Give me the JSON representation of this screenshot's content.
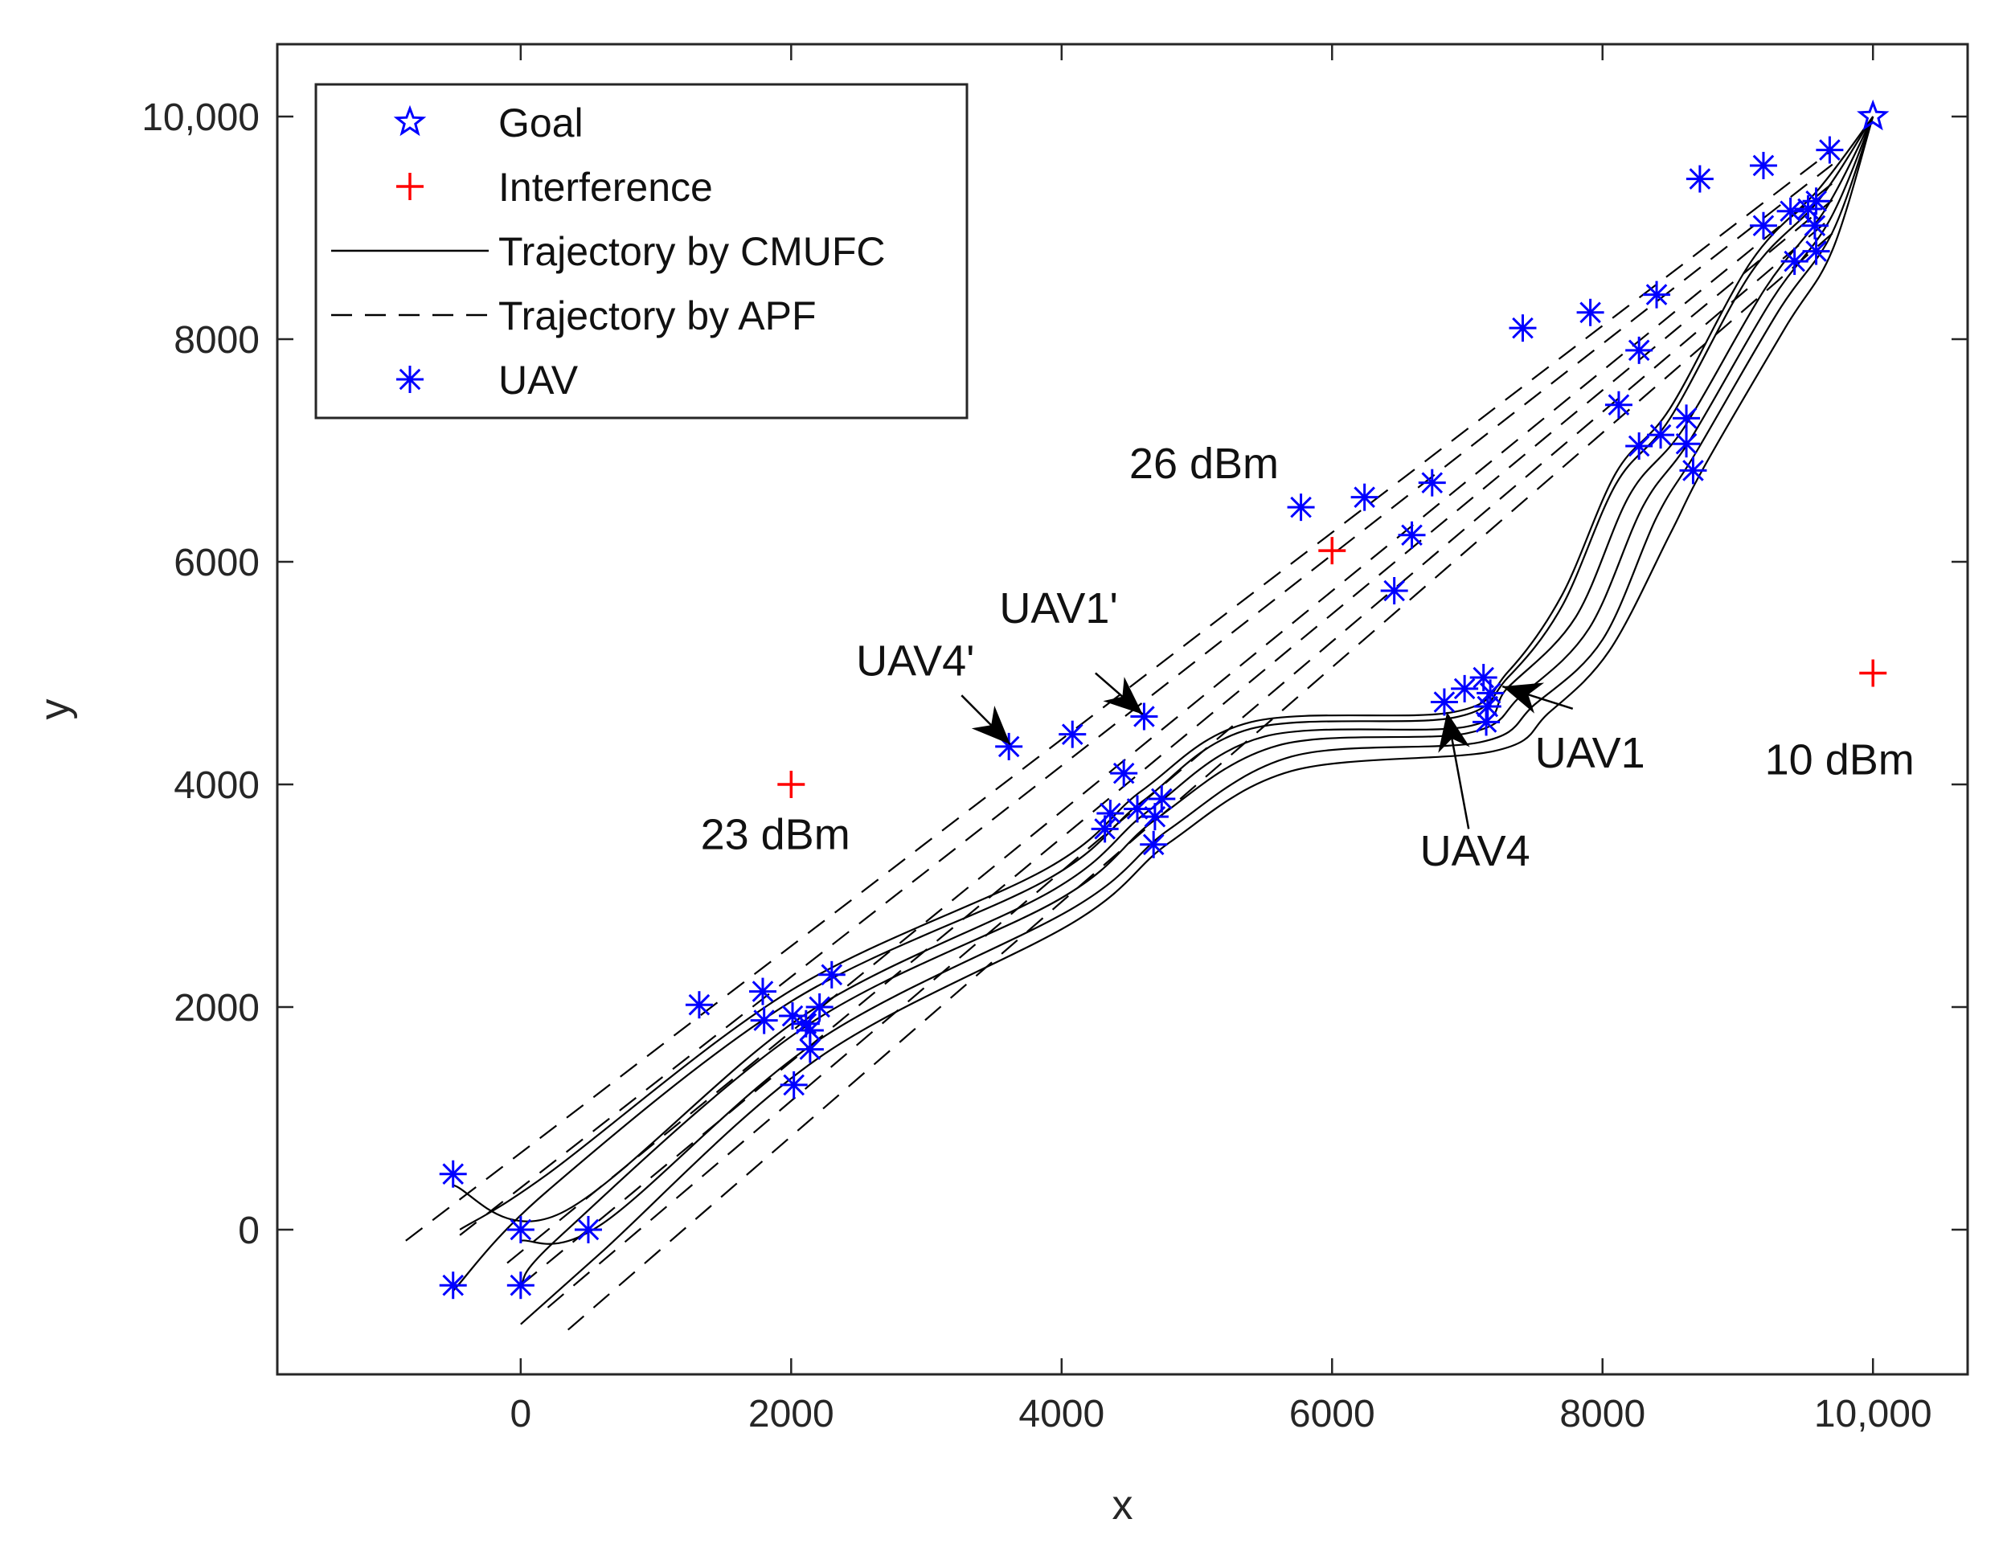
{
  "chart_data": {
    "type": "scatter",
    "xlabel": "x",
    "ylabel": "y",
    "xlim": [
      -1800,
      10700
    ],
    "ylim": [
      -1300,
      10650
    ],
    "xticks": [
      0,
      2000,
      4000,
      6000,
      8000,
      10000
    ],
    "xtick_labels": [
      "0",
      "2000",
      "4000",
      "6000",
      "8000",
      "10,000"
    ],
    "yticks": [
      0,
      2000,
      4000,
      6000,
      8000,
      10000
    ],
    "ytick_labels": [
      "0",
      "2000",
      "4000",
      "6000",
      "8000",
      "10,000"
    ],
    "grid": false,
    "legend": {
      "location": "top-left",
      "entries": [
        {
          "label": "Goal",
          "marker": "star",
          "color": "#0000ff"
        },
        {
          "label": "Interference",
          "marker": "plus",
          "color": "#ff0000"
        },
        {
          "label": "Trajectory by CMUFC",
          "line": "solid",
          "color": "#000000"
        },
        {
          "label": "Trajectory by APF",
          "line": "dashed",
          "color": "#000000"
        },
        {
          "label": "UAV",
          "marker": "asterisk",
          "color": "#0000ff"
        }
      ]
    },
    "colors": {
      "uav": "#0000ff",
      "goal": "#0000ff",
      "interference": "#ff0000",
      "trajectory": "#000000"
    },
    "goal": {
      "x": 10000,
      "y": 10000
    },
    "interference": [
      {
        "x": 2000,
        "y": 4000,
        "power": "23 dBm"
      },
      {
        "x": 6000,
        "y": 6100,
        "power": "26 dBm"
      },
      {
        "x": 10000,
        "y": 5000,
        "power": "10 dBm"
      }
    ],
    "power_labels": [
      {
        "text": "23 dBm",
        "x": 1330,
        "y": 3420
      },
      {
        "text": "26 dBm",
        "x": 4500,
        "y": 6750
      },
      {
        "text": "10 dBm",
        "x": 9200,
        "y": 4090
      }
    ],
    "uav_positions": [
      {
        "x": -500,
        "y": 500
      },
      {
        "x": 0,
        "y": 0
      },
      {
        "x": 500,
        "y": 0
      },
      {
        "x": -500,
        "y": -500
      },
      {
        "x": 0,
        "y": -500
      },
      {
        "x": 1320,
        "y": 2020
      },
      {
        "x": 1790,
        "y": 2140
      },
      {
        "x": 1800,
        "y": 1880
      },
      {
        "x": 2010,
        "y": 1920
      },
      {
        "x": 2300,
        "y": 2290
      },
      {
        "x": 2110,
        "y": 1850
      },
      {
        "x": 2210,
        "y": 2000
      },
      {
        "x": 2140,
        "y": 1790
      },
      {
        "x": 2140,
        "y": 1620
      },
      {
        "x": 2020,
        "y": 1300
      },
      {
        "x": 3610,
        "y": 4340
      },
      {
        "x": 4080,
        "y": 4450
      },
      {
        "x": 4610,
        "y": 4610
      },
      {
        "x": 4460,
        "y": 4100
      },
      {
        "x": 4320,
        "y": 3600
      },
      {
        "x": 4360,
        "y": 3740
      },
      {
        "x": 4560,
        "y": 3780
      },
      {
        "x": 4740,
        "y": 3870
      },
      {
        "x": 4690,
        "y": 3710
      },
      {
        "x": 4680,
        "y": 3460
      },
      {
        "x": 5770,
        "y": 6490
      },
      {
        "x": 6240,
        "y": 6580
      },
      {
        "x": 6740,
        "y": 6710
      },
      {
        "x": 6590,
        "y": 6240
      },
      {
        "x": 6460,
        "y": 5740
      },
      {
        "x": 6830,
        "y": 4740
      },
      {
        "x": 6980,
        "y": 4860
      },
      {
        "x": 7120,
        "y": 4960
      },
      {
        "x": 7170,
        "y": 4820
      },
      {
        "x": 7150,
        "y": 4700
      },
      {
        "x": 7140,
        "y": 4560
      },
      {
        "x": 7410,
        "y": 8100
      },
      {
        "x": 7910,
        "y": 8240
      },
      {
        "x": 8400,
        "y": 8400
      },
      {
        "x": 8270,
        "y": 7900
      },
      {
        "x": 8120,
        "y": 7410
      },
      {
        "x": 8270,
        "y": 7040
      },
      {
        "x": 8430,
        "y": 7140
      },
      {
        "x": 8620,
        "y": 7290
      },
      {
        "x": 8620,
        "y": 7060
      },
      {
        "x": 8670,
        "y": 6820
      },
      {
        "x": 8720,
        "y": 9440
      },
      {
        "x": 9190,
        "y": 9560
      },
      {
        "x": 9680,
        "y": 9700
      },
      {
        "x": 9190,
        "y": 9020
      },
      {
        "x": 9420,
        "y": 8700
      },
      {
        "x": 9390,
        "y": 9150
      },
      {
        "x": 9520,
        "y": 9170
      },
      {
        "x": 9580,
        "y": 9240
      },
      {
        "x": 9570,
        "y": 9020
      },
      {
        "x": 9580,
        "y": 8790
      }
    ],
    "cmufc_trajectories": [
      [
        [
          -450,
          0
        ],
        [
          200,
          500
        ],
        [
          2000,
          2150
        ],
        [
          3900,
          3250
        ],
        [
          4600,
          3950
        ],
        [
          5400,
          4560
        ],
        [
          6900,
          4650
        ],
        [
          7300,
          5010
        ],
        [
          7700,
          5700
        ],
        [
          8100,
          6800
        ],
        [
          8500,
          7380
        ],
        [
          9100,
          8700
        ],
        [
          9600,
          9350
        ],
        [
          10000,
          10000
        ]
      ],
      [
        [
          -500,
          -550
        ],
        [
          200,
          350
        ],
        [
          2000,
          2050
        ],
        [
          3900,
          3150
        ],
        [
          4600,
          3850
        ],
        [
          5400,
          4500
        ],
        [
          6900,
          4600
        ],
        [
          7300,
          4960
        ],
        [
          7700,
          5600
        ],
        [
          8100,
          6700
        ],
        [
          8500,
          7290
        ],
        [
          9100,
          8600
        ],
        [
          9600,
          9250
        ],
        [
          10000,
          10000
        ]
      ],
      [
        [
          -500,
          400
        ],
        [
          300,
          150
        ],
        [
          2100,
          1930
        ],
        [
          3950,
          3060
        ],
        [
          4650,
          3770
        ],
        [
          5500,
          4430
        ],
        [
          7000,
          4520
        ],
        [
          7300,
          4870
        ],
        [
          7800,
          5500
        ],
        [
          8200,
          6600
        ],
        [
          8600,
          7200
        ],
        [
          9200,
          8450
        ],
        [
          9650,
          9170
        ],
        [
          10000,
          10000
        ]
      ],
      [
        [
          0,
          -500
        ],
        [
          300,
          -50
        ],
        [
          2100,
          1820
        ],
        [
          4000,
          2980
        ],
        [
          4700,
          3690
        ],
        [
          5600,
          4350
        ],
        [
          7000,
          4460
        ],
        [
          7400,
          4800
        ],
        [
          7900,
          5400
        ],
        [
          8300,
          6500
        ],
        [
          8650,
          7100
        ],
        [
          9250,
          8350
        ],
        [
          9680,
          9070
        ],
        [
          10000,
          10000
        ]
      ],
      [
        [
          0,
          -100
        ],
        [
          600,
          50
        ],
        [
          2200,
          1700
        ],
        [
          4100,
          2900
        ],
        [
          4800,
          3600
        ],
        [
          5700,
          4250
        ],
        [
          7100,
          4380
        ],
        [
          7500,
          4720
        ],
        [
          8000,
          5300
        ],
        [
          8400,
          6400
        ],
        [
          8700,
          7000
        ],
        [
          9300,
          8250
        ],
        [
          9700,
          8960
        ],
        [
          10000,
          10000
        ]
      ],
      [
        [
          0,
          -850
        ],
        [
          600,
          -200
        ],
        [
          2200,
          1540
        ],
        [
          4100,
          2770
        ],
        [
          4800,
          3480
        ],
        [
          5700,
          4120
        ],
        [
          7200,
          4300
        ],
        [
          7600,
          4640
        ],
        [
          8050,
          5200
        ],
        [
          8500,
          6250
        ],
        [
          8750,
          6850
        ],
        [
          9350,
          8100
        ],
        [
          9700,
          8800
        ],
        [
          10000,
          10000
        ]
      ]
    ],
    "apf_trajectories": [
      [
        [
          -850,
          -100
        ],
        [
          9700,
          9700
        ]
      ],
      [
        [
          -450,
          -50
        ],
        [
          9700,
          9570
        ]
      ],
      [
        [
          -100,
          -300
        ],
        [
          9700,
          9400
        ]
      ],
      [
        [
          0,
          -500
        ],
        [
          9700,
          9250
        ]
      ],
      [
        [
          200,
          -700
        ],
        [
          9700,
          9100
        ]
      ],
      [
        [
          350,
          -900
        ],
        [
          9700,
          8950
        ]
      ]
    ],
    "arrows": [
      {
        "label": "UAV4'",
        "tip": [
          3620,
          4360
        ],
        "tail": [
          3260,
          4800
        ],
        "label_at": [
          2480,
          4980
        ]
      },
      {
        "label": "UAV1'",
        "tip": [
          4600,
          4630
        ],
        "tail": [
          4250,
          5000
        ],
        "label_at": [
          3540,
          5450
        ]
      },
      {
        "label": "UAV1",
        "tip": [
          7260,
          4880
        ],
        "tail": [
          7780,
          4680
        ],
        "label_at": [
          7500,
          4150
        ]
      },
      {
        "label": "UAV4",
        "tip": [
          6850,
          4650
        ],
        "tail": [
          7010,
          3600
        ],
        "label_at": [
          6650,
          3270
        ]
      }
    ]
  }
}
